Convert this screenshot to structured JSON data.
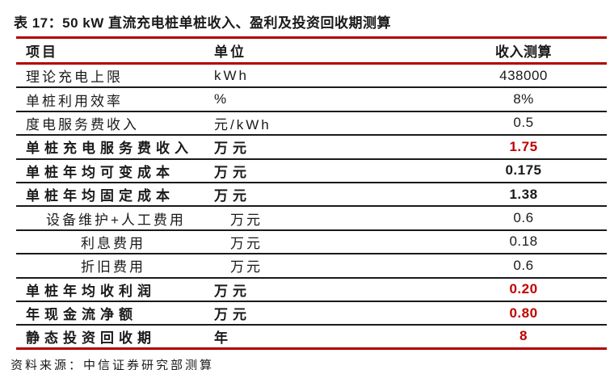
{
  "title": "表 17：50 kW 直流充电桩单桩收入、盈利及投资回收期测算",
  "source": "资料来源：中信证券研究部测算",
  "colors": {
    "line_red": "#B00000",
    "value_red": "#C00000",
    "text_black": "#1a1a1a"
  },
  "table": {
    "columns": {
      "item": "项目",
      "unit": "单位",
      "value": "收入测算"
    },
    "rows": [
      {
        "item": "理论充电上限",
        "unit": "kWh",
        "value": "438000",
        "bold": false,
        "red": false,
        "indent": 0
      },
      {
        "item": "单桩利用效率",
        "unit": "%",
        "value": "8%",
        "bold": false,
        "red": false,
        "indent": 0
      },
      {
        "item": "度电服务费收入",
        "unit": "元/kWh",
        "value": "0.5",
        "bold": false,
        "red": false,
        "indent": 0
      },
      {
        "item": "单桩充电服务费收入",
        "unit": "万元",
        "value": "1.75",
        "bold": true,
        "red": true,
        "indent": 0
      },
      {
        "item": "单桩年均可变成本",
        "unit": "万元",
        "value": "0.175",
        "bold": true,
        "red": false,
        "indent": 0
      },
      {
        "item": "单桩年均固定成本",
        "unit": "万元",
        "value": "1.38",
        "bold": true,
        "red": false,
        "indent": 0
      },
      {
        "item": "设备维护+人工费用",
        "unit": "万元",
        "value": "0.6",
        "bold": false,
        "red": false,
        "indent": 1
      },
      {
        "item": "利息费用",
        "unit": "万元",
        "value": "0.18",
        "bold": false,
        "red": false,
        "indent": 2
      },
      {
        "item": "折旧费用",
        "unit": "万元",
        "value": "0.6",
        "bold": false,
        "red": false,
        "indent": 2
      },
      {
        "item": "单桩年均收利润",
        "unit": "万元",
        "value": "0.20",
        "bold": true,
        "red": true,
        "indent": 0
      },
      {
        "item": "年现金流净额",
        "unit": "万元",
        "value": "0.80",
        "bold": true,
        "red": true,
        "indent": 0
      },
      {
        "item": "静态投资回收期",
        "unit": "年",
        "value": "8",
        "bold": true,
        "red": true,
        "indent": 0
      }
    ]
  }
}
